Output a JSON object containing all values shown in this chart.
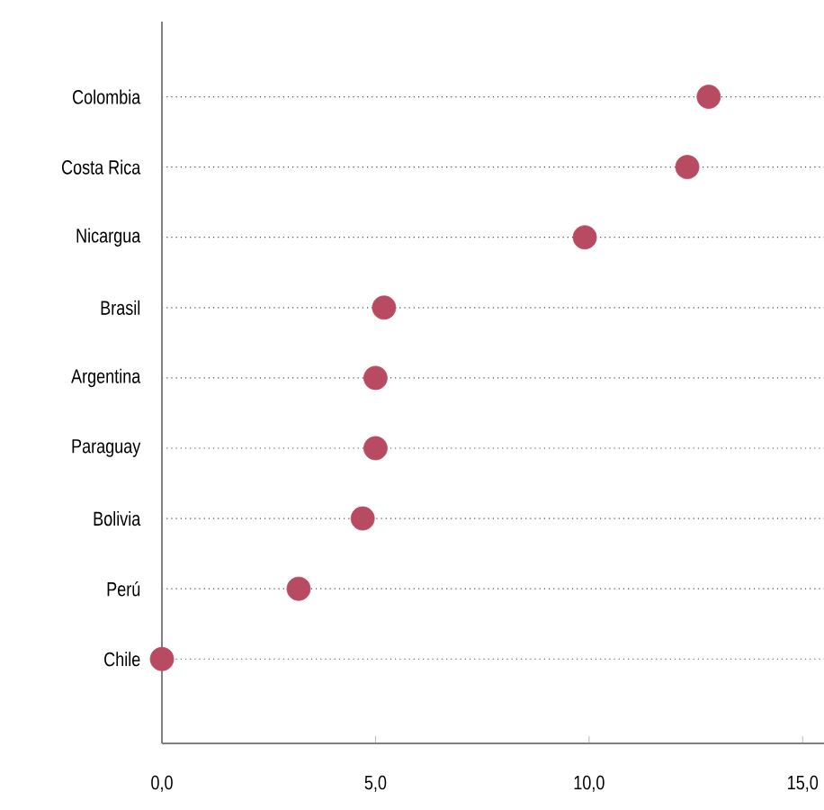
{
  "chart_data": {
    "type": "scatter",
    "orientation": "horizontal",
    "categories": [
      "Colombia",
      "Costa Rica",
      "Nicargua",
      "Brasil",
      "Argentina",
      "Paraguay",
      "Bolivia",
      "Perú",
      "Chile"
    ],
    "values": [
      12.8,
      12.3,
      9.9,
      5.2,
      5.0,
      5.0,
      4.7,
      3.2,
      0.0
    ],
    "color": "#b84a62",
    "marker": "circle",
    "grid": "y",
    "line_style": "dotted",
    "xlim": [
      0,
      15.5
    ],
    "xticks": [
      {
        "value": 0,
        "label": "0,0"
      },
      {
        "value": 5,
        "label": "5,0"
      },
      {
        "value": 10,
        "label": "10,0"
      },
      {
        "value": 15,
        "label": "15,0"
      }
    ]
  }
}
